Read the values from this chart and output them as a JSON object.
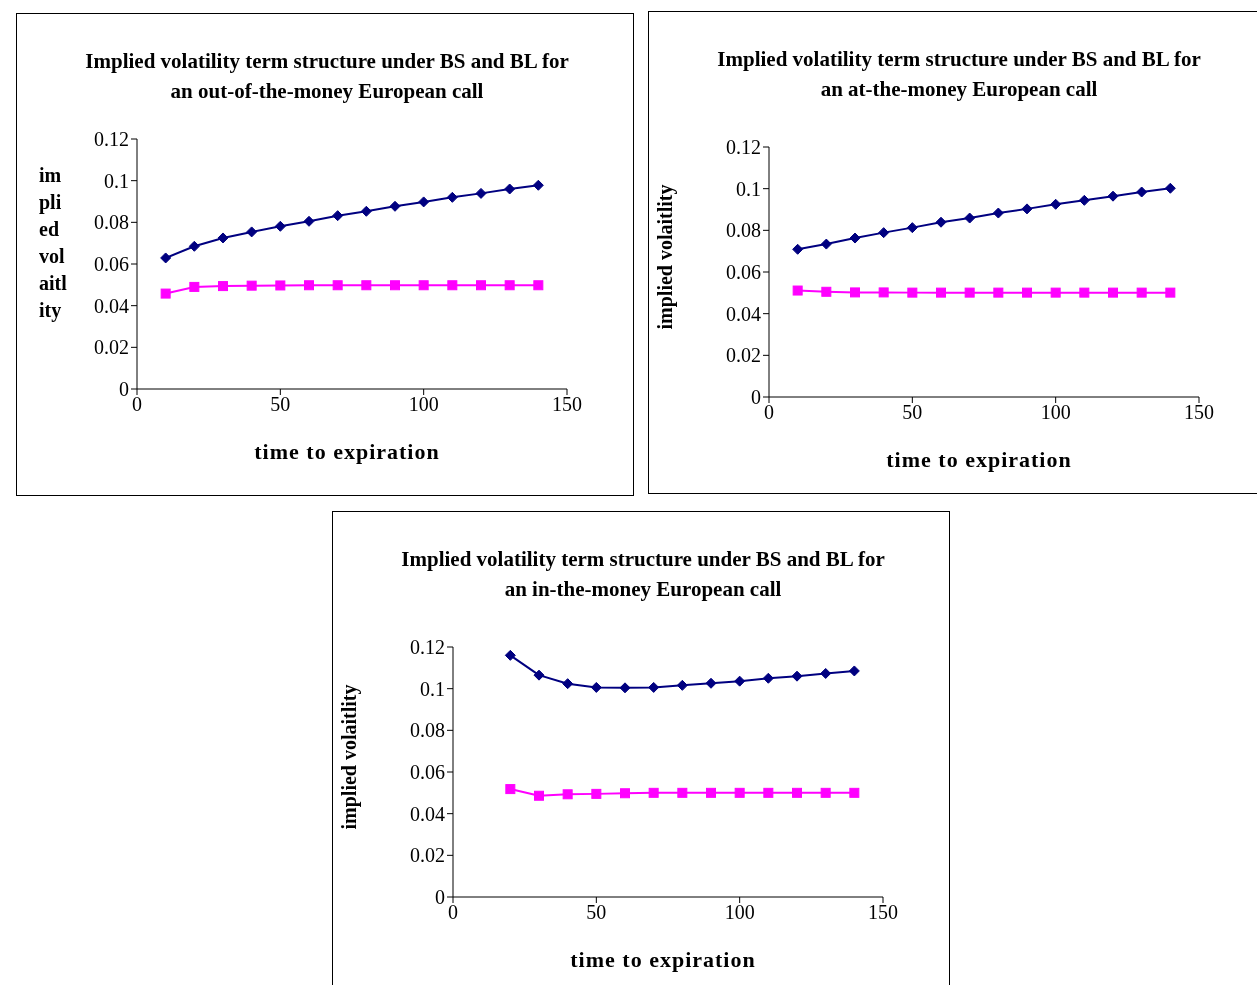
{
  "chart_data": [
    {
      "type": "line",
      "title": "Implied volatility term structure under BS and BL for an out-of-the-money European call",
      "xlabel": "time to expiration",
      "ylabel": "implied volaitlity",
      "xlim": [
        0,
        150
      ],
      "xticks": [
        0,
        50,
        100,
        150
      ],
      "ylim": [
        0,
        0.12
      ],
      "yticks": [
        0,
        0.02,
        0.04,
        0.06,
        0.08,
        0.1,
        0.12
      ],
      "x": [
        10,
        20,
        30,
        40,
        50,
        60,
        70,
        80,
        90,
        100,
        110,
        120,
        130,
        140
      ],
      "series": [
        {
          "color": "#000080",
          "marker": "diamond",
          "values": [
            0.0629,
            0.0685,
            0.0725,
            0.0754,
            0.0781,
            0.0805,
            0.0832,
            0.0853,
            0.0877,
            0.0898,
            0.092,
            0.0939,
            0.096,
            0.0978
          ]
        },
        {
          "color": "#ff00ff",
          "marker": "square",
          "values": [
            0.0458,
            0.049,
            0.0494,
            0.0496,
            0.0497,
            0.0498,
            0.0498,
            0.0498,
            0.0498,
            0.0498,
            0.0498,
            0.0498,
            0.0498,
            0.0498
          ]
        }
      ]
    },
    {
      "type": "line",
      "title": "Implied volatility term structure under BS and BL for an at-the-money European call",
      "xlabel": "time to expiration",
      "ylabel": "implied volaitlity",
      "xlim": [
        0,
        150
      ],
      "xticks": [
        0,
        50,
        100,
        150
      ],
      "ylim": [
        0,
        0.12
      ],
      "yticks": [
        0,
        0.02,
        0.04,
        0.06,
        0.08,
        0.1,
        0.12
      ],
      "x": [
        10,
        20,
        30,
        40,
        50,
        60,
        70,
        80,
        90,
        100,
        110,
        120,
        130,
        140
      ],
      "series": [
        {
          "color": "#000080",
          "marker": "diamond",
          "values": [
            0.0709,
            0.0734,
            0.0763,
            0.0789,
            0.0813,
            0.0839,
            0.0859,
            0.0883,
            0.0903,
            0.0925,
            0.0944,
            0.0964,
            0.0984,
            0.1002
          ]
        },
        {
          "color": "#ff00ff",
          "marker": "square",
          "values": [
            0.0511,
            0.0505,
            0.0502,
            0.0502,
            0.0501,
            0.0501,
            0.0501,
            0.0501,
            0.0501,
            0.0501,
            0.0501,
            0.0501,
            0.0501,
            0.0501
          ]
        }
      ]
    },
    {
      "type": "line",
      "title": "Implied volatility term structure under BS and BL for an in-the-money European call",
      "xlabel": "time to expiration",
      "ylabel": "implied volaitlity",
      "xlim": [
        0,
        150
      ],
      "xticks": [
        0,
        50,
        100,
        150
      ],
      "ylim": [
        0,
        0.12
      ],
      "yticks": [
        0,
        0.02,
        0.04,
        0.06,
        0.08,
        0.1,
        0.12
      ],
      "x": [
        20,
        30,
        40,
        50,
        60,
        70,
        80,
        90,
        100,
        110,
        120,
        130,
        140
      ],
      "series": [
        {
          "color": "#000080",
          "marker": "diamond",
          "values": [
            0.116,
            0.1065,
            0.1024,
            0.1006,
            0.1004,
            0.1006,
            0.1016,
            0.1026,
            0.1036,
            0.105,
            0.106,
            0.1073,
            0.1085
          ]
        },
        {
          "color": "#ff00ff",
          "marker": "square",
          "values": [
            0.0518,
            0.0486,
            0.0493,
            0.0495,
            0.0498,
            0.05,
            0.05,
            0.05,
            0.05,
            0.05,
            0.05,
            0.05,
            0.05
          ]
        }
      ]
    }
  ]
}
